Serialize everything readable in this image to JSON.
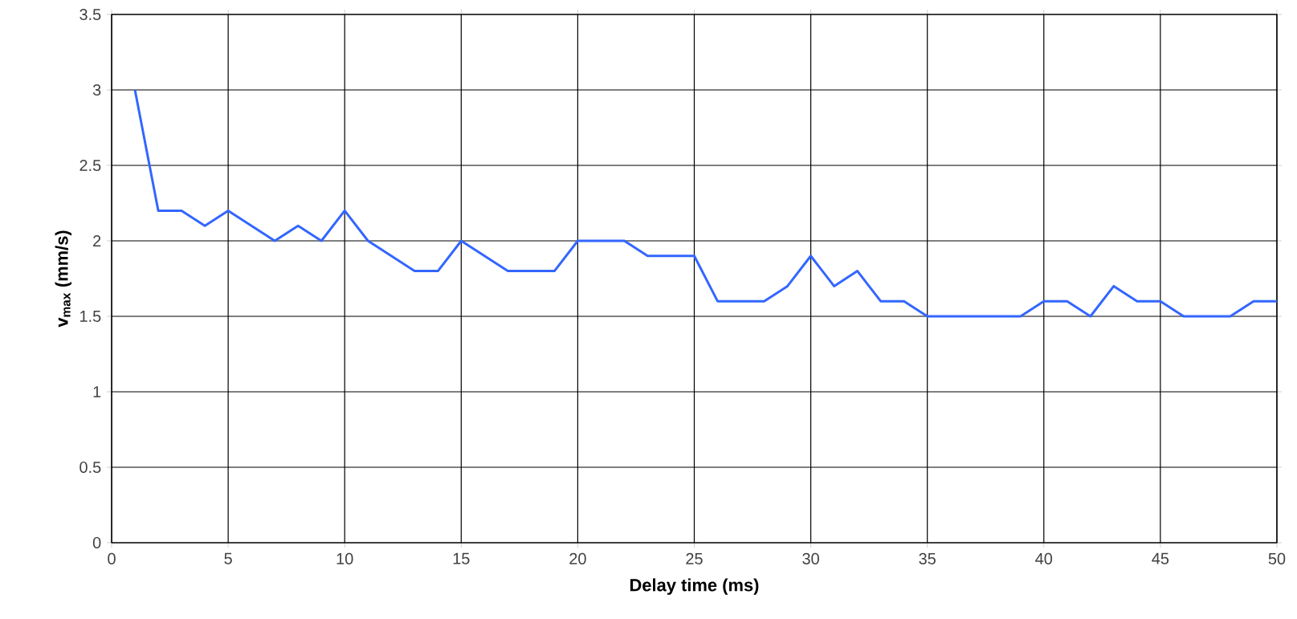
{
  "chart_data": {
    "type": "line",
    "xlabel": "Delay time (ms)",
    "ylabel": "v$_{max}$ (mm/s)",
    "x": [
      1,
      2,
      3,
      4,
      5,
      6,
      7,
      8,
      9,
      10,
      11,
      12,
      13,
      14,
      15,
      16,
      17,
      18,
      19,
      20,
      21,
      22,
      23,
      24,
      25,
      26,
      27,
      28,
      29,
      30,
      31,
      32,
      33,
      34,
      35,
      36,
      37,
      38,
      39,
      40,
      41,
      42,
      43,
      44,
      45,
      46,
      47,
      48,
      49,
      50
    ],
    "series": [
      {
        "color": "#3366ff",
        "values": [
          3.0,
          2.2,
          2.2,
          2.1,
          2.2,
          2.1,
          2.0,
          2.1,
          2.0,
          2.2,
          2.0,
          1.9,
          1.8,
          1.8,
          2.0,
          1.9,
          1.8,
          1.8,
          1.8,
          2.0,
          2.0,
          2.0,
          1.9,
          1.9,
          1.9,
          1.6,
          1.6,
          1.6,
          1.7,
          1.9,
          1.7,
          1.8,
          1.6,
          1.6,
          1.5,
          1.5,
          1.5,
          1.5,
          1.5,
          1.6,
          1.6,
          1.5,
          1.7,
          1.6,
          1.6,
          1.5,
          1.5,
          1.5,
          1.6,
          1.6
        ]
      }
    ],
    "xlim": [
      0,
      50
    ],
    "ylim": [
      0,
      3.5
    ],
    "xticks": [
      0,
      5,
      10,
      15,
      20,
      25,
      30,
      35,
      40,
      45,
      50
    ],
    "yticks": [
      0,
      0.5,
      1,
      1.5,
      2,
      2.5,
      3,
      3.5
    ],
    "grid": true,
    "marker": "none",
    "line_style": "solid"
  }
}
